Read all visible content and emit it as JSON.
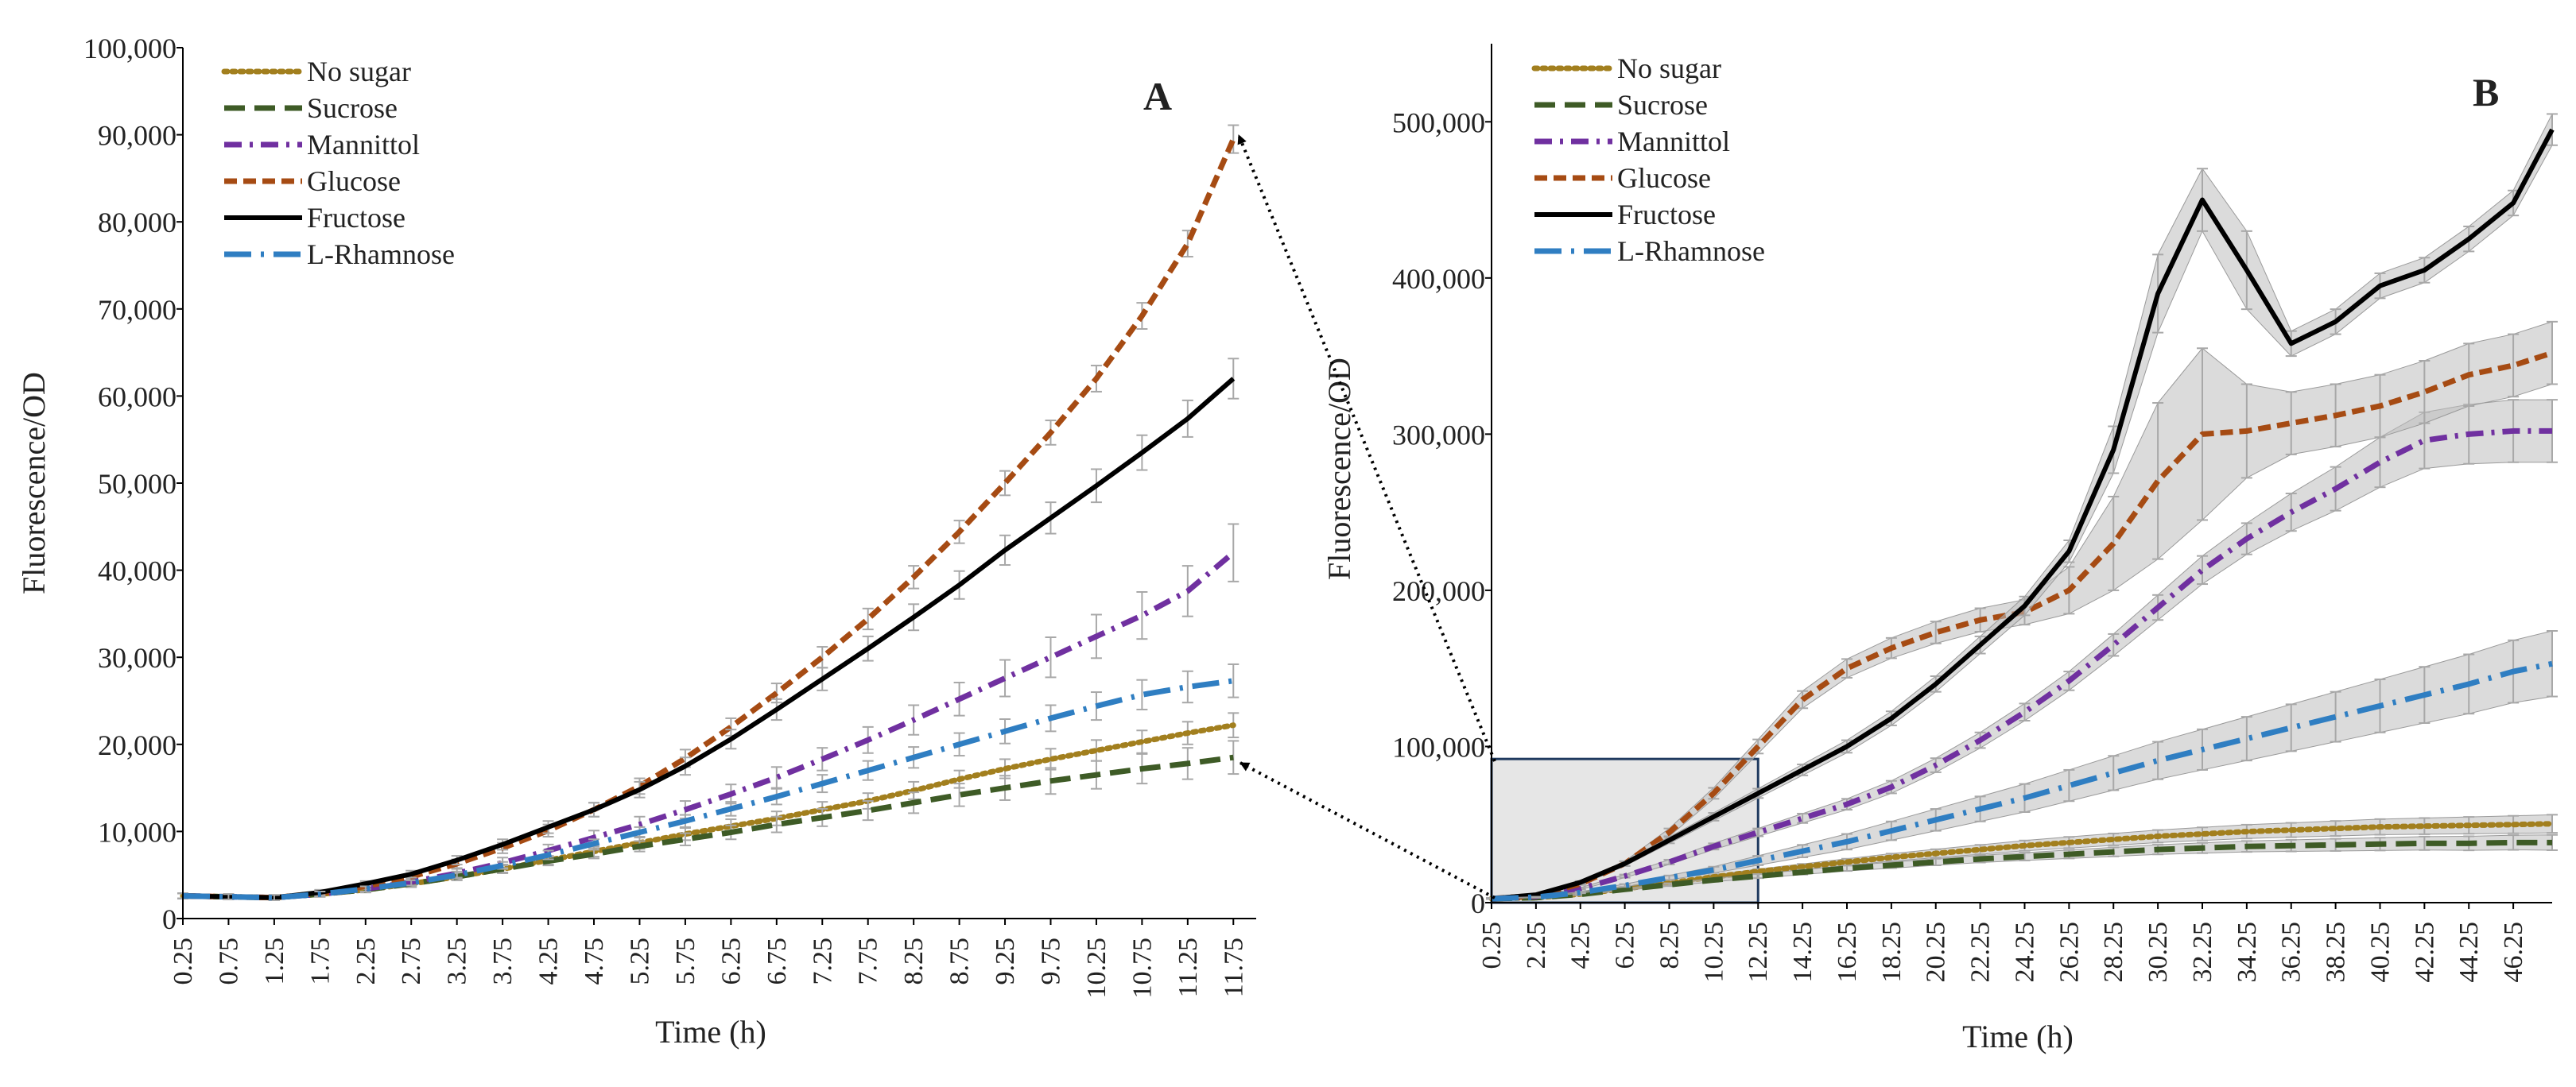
{
  "figure": {
    "background": "#ffffff"
  },
  "chart_data": [
    {
      "type": "line",
      "panel_label": "A",
      "xlabel": "Time (h)",
      "ylabel": "Fluorescence/OD",
      "x": [
        0.25,
        0.75,
        1.25,
        1.75,
        2.25,
        2.75,
        3.25,
        3.75,
        4.25,
        4.75,
        5.25,
        5.75,
        6.25,
        6.75,
        7.25,
        7.75,
        8.25,
        8.75,
        9.25,
        9.75,
        10.25,
        10.75,
        11.25,
        11.75
      ],
      "x_tick_labels": [
        "0.25",
        "0.75",
        "1.25",
        "1.75",
        "2.25",
        "2.75",
        "3.25",
        "3.75",
        "4.25",
        "4.75",
        "5.25",
        "5.75",
        "6.25",
        "6.75",
        "7.25",
        "7.75",
        "8.25",
        "8.75",
        "9.25",
        "9.75",
        "10.25",
        "10.75",
        "11.25",
        "11.75"
      ],
      "xlim": [
        0.25,
        12.0
      ],
      "ylim": [
        0,
        100000
      ],
      "y_ticks": [
        0,
        10000,
        20000,
        30000,
        40000,
        50000,
        60000,
        70000,
        80000,
        90000,
        100000
      ],
      "y_tick_labels": [
        "0",
        "10,000",
        "20,000",
        "30,000",
        "40,000",
        "50,000",
        "60,000",
        "70,000",
        "80,000",
        "90,000",
        "100,000"
      ],
      "grid": false,
      "legend": "top-left",
      "series": [
        {
          "name": "No sugar",
          "color": "#a27f1e",
          "dash": "dotted",
          "values": [
            2600,
            2500,
            2400,
            2800,
            3300,
            4000,
            4800,
            5700,
            6700,
            7700,
            8700,
            9700,
            10600,
            11500,
            12500,
            13500,
            14700,
            16000,
            17200,
            18300,
            19300,
            20300,
            21300,
            22200
          ],
          "errors": [
            300,
            300,
            300,
            300,
            300,
            400,
            400,
            500,
            500,
            600,
            700,
            700,
            800,
            800,
            900,
            900,
            1000,
            1000,
            1100,
            1200,
            1200,
            1300,
            1300,
            1400
          ]
        },
        {
          "name": "Sucrose",
          "color": "#3e5b26",
          "dash": "long-dash",
          "values": [
            2600,
            2500,
            2400,
            2800,
            3300,
            4000,
            4800,
            5700,
            6600,
            7400,
            8300,
            9100,
            9900,
            10800,
            11600,
            12400,
            13300,
            14200,
            15000,
            15800,
            16500,
            17200,
            17800,
            18500
          ],
          "errors": [
            300,
            300,
            300,
            300,
            300,
            300,
            400,
            400,
            500,
            500,
            600,
            700,
            800,
            900,
            1000,
            1100,
            1200,
            1300,
            1400,
            1500,
            1600,
            1700,
            1800,
            1900
          ]
        },
        {
          "name": "Mannittol",
          "color": "#7030a0",
          "dash": "dash-dot",
          "values": [
            2600,
            2500,
            2400,
            2800,
            3400,
            4200,
            5200,
            6400,
            7800,
            9300,
            10800,
            12500,
            14300,
            16200,
            18300,
            20500,
            22800,
            25200,
            27600,
            30000,
            32400,
            34800,
            37600,
            42000
          ],
          "errors": [
            300,
            300,
            300,
            300,
            300,
            400,
            500,
            600,
            700,
            800,
            900,
            1000,
            1100,
            1200,
            1300,
            1500,
            1700,
            1900,
            2100,
            2300,
            2500,
            2700,
            2900,
            3300
          ]
        },
        {
          "name": "Glucose",
          "color": "#a64b13",
          "dash": "dash",
          "values": [
            2600,
            2500,
            2400,
            2900,
            3700,
            4800,
            6300,
            8100,
            10100,
            12500,
            15200,
            18400,
            22000,
            25900,
            30000,
            34400,
            39200,
            44400,
            50000,
            55800,
            62000,
            69200,
            77500,
            89500
          ],
          "errors": [
            300,
            300,
            300,
            300,
            300,
            400,
            500,
            600,
            700,
            800,
            900,
            1000,
            1000,
            1100,
            1200,
            1200,
            1300,
            1300,
            1400,
            1400,
            1500,
            1500,
            1500,
            1600
          ]
        },
        {
          "name": "Fructose",
          "color": "#000000",
          "dash": "solid",
          "values": [
            2600,
            2500,
            2400,
            3000,
            4000,
            5100,
            6700,
            8500,
            10500,
            12500,
            14800,
            17500,
            20600,
            24000,
            27500,
            31000,
            34600,
            38300,
            42300,
            46000,
            49700,
            53500,
            57400,
            62000
          ],
          "errors": [
            300,
            300,
            300,
            300,
            300,
            400,
            500,
            600,
            700,
            800,
            900,
            1000,
            1100,
            1200,
            1300,
            1400,
            1500,
            1600,
            1700,
            1800,
            1900,
            2000,
            2100,
            2300
          ]
        },
        {
          "name": "L-Rhamnose",
          "color": "#2f7ec2",
          "dash": "long-dash-dot",
          "values": [
            2600,
            2500,
            2400,
            2800,
            3400,
            4100,
            5000,
            6100,
            7300,
            8600,
            9900,
            11200,
            12600,
            14000,
            15500,
            17000,
            18500,
            20000,
            21500,
            23000,
            24400,
            25700,
            26600,
            27300
          ],
          "errors": [
            300,
            300,
            300,
            300,
            300,
            300,
            400,
            400,
            500,
            500,
            600,
            700,
            800,
            900,
            1000,
            1100,
            1200,
            1300,
            1400,
            1500,
            1600,
            1700,
            1800,
            1900
          ]
        }
      ]
    },
    {
      "type": "line",
      "panel_label": "B",
      "xlabel": "Time (h)",
      "ylabel": "Fluorescence/OD",
      "x": [
        0.25,
        2.25,
        4.25,
        6.25,
        8.25,
        10.25,
        12.25,
        14.25,
        16.25,
        18.25,
        20.25,
        22.25,
        24.25,
        26.25,
        28.25,
        30.25,
        32.25,
        34.25,
        36.25,
        38.25,
        40.25,
        42.25,
        44.25,
        46.25,
        48.0
      ],
      "x_tick_labels": [
        "0.25",
        "2.25",
        "4.25",
        "6.25",
        "8.25",
        "10.25",
        "12.25",
        "14.25",
        "16.25",
        "18.25",
        "20.25",
        "22.25",
        "24.25",
        "26.25",
        "28.25",
        "30.25",
        "32.25",
        "34.25",
        "36.25",
        "38.25",
        "40.25",
        "42.25",
        "44.25",
        "46.25"
      ],
      "xlim": [
        0.25,
        48.0
      ],
      "ylim": [
        0,
        550000
      ],
      "y_ticks": [
        0,
        100000,
        200000,
        300000,
        400000,
        500000
      ],
      "y_tick_labels": [
        "0",
        "100,000",
        "200,000",
        "300,000",
        "400,000",
        "500,000"
      ],
      "grid": false,
      "legend": "top-left",
      "zoom_box": {
        "x": [
          0.25,
          12.25
        ],
        "y": [
          0,
          92000
        ],
        "fill": "#e6e6e6",
        "stroke": "#1f3a5f"
      },
      "series": [
        {
          "name": "No sugar",
          "color": "#a27f1e",
          "dash": "dotted",
          "values": [
            2600,
            3200,
            5500,
            9000,
            12500,
            16500,
            20000,
            23000,
            26000,
            29000,
            31500,
            34000,
            36500,
            38500,
            40500,
            42500,
            44000,
            45500,
            46500,
            47500,
            48500,
            49000,
            49500,
            50000,
            50500
          ],
          "errors": [
            300,
            300,
            500,
            700,
            1000,
            1200,
            1500,
            1800,
            2100,
            2400,
            2700,
            3000,
            3300,
            3600,
            3800,
            4000,
            4200,
            4400,
            4600,
            4800,
            5000,
            5200,
            5400,
            5600,
            5800
          ]
        },
        {
          "name": "Sucrose",
          "color": "#3e5b26",
          "dash": "long-dash",
          "values": [
            2600,
            3200,
            5300,
            8500,
            11500,
            14500,
            17000,
            19500,
            22000,
            24000,
            26000,
            28000,
            29500,
            31000,
            32500,
            34000,
            35000,
            36000,
            36500,
            37000,
            37500,
            38000,
            38000,
            38500,
            38500
          ],
          "errors": [
            300,
            300,
            500,
            700,
            900,
            1100,
            1300,
            1500,
            1700,
            1900,
            2100,
            2300,
            2500,
            2700,
            2900,
            3100,
            3300,
            3500,
            3700,
            3900,
            4100,
            4300,
            4500,
            4700,
            4900
          ]
        },
        {
          "name": "Mannittol",
          "color": "#7030a0",
          "dash": "dash-dot",
          "values": [
            2600,
            4000,
            9000,
            17000,
            26000,
            36000,
            45000,
            54000,
            63000,
            74000,
            88000,
            104000,
            122000,
            142000,
            165000,
            189000,
            213000,
            233000,
            250000,
            265000,
            282000,
            296000,
            300000,
            302000,
            302000
          ],
          "errors": [
            300,
            300,
            600,
            1000,
            1500,
            2000,
            2500,
            3000,
            3500,
            4000,
            4500,
            5000,
            5500,
            6000,
            7000,
            8000,
            9000,
            10000,
            12000,
            14000,
            16000,
            18000,
            19000,
            20000,
            20000
          ]
        },
        {
          "name": "Glucose",
          "color": "#a64b13",
          "dash": "dash",
          "values": [
            2600,
            4500,
            12000,
            25000,
            45000,
            70000,
            100000,
            130000,
            150000,
            163000,
            173000,
            181000,
            186000,
            200000,
            230000,
            270000,
            300000,
            302000,
            307000,
            312000,
            318000,
            327000,
            338000,
            344000,
            352000
          ],
          "errors": [
            300,
            400,
            700,
            1500,
            2500,
            3500,
            4500,
            5500,
            6000,
            6500,
            7000,
            7500,
            8000,
            15000,
            30000,
            50000,
            55000,
            30000,
            20000,
            20000,
            20000,
            20000,
            20000,
            20000,
            20000
          ]
        },
        {
          "name": "Fructose",
          "color": "#000000",
          "dash": "solid",
          "values": [
            2600,
            5000,
            13000,
            25000,
            40000,
            55000,
            70000,
            85000,
            100000,
            118000,
            140000,
            165000,
            190000,
            225000,
            290000,
            390000,
            450000,
            405000,
            358000,
            372000,
            395000,
            405000,
            425000,
            448000,
            495000
          ],
          "errors": [
            300,
            400,
            800,
            1500,
            2000,
            2500,
            3000,
            3500,
            4000,
            4500,
            5000,
            5500,
            6000,
            7000,
            15000,
            25000,
            20000,
            25000,
            8000,
            8000,
            8000,
            8000,
            8000,
            8000,
            10000
          ]
        },
        {
          "name": "L-Rhamnose",
          "color": "#2f7ec2",
          "dash": "long-dash-dot",
          "values": [
            2600,
            3500,
            6500,
            11000,
            16000,
            21000,
            27000,
            33000,
            39000,
            46000,
            53000,
            60000,
            67000,
            75000,
            83000,
            91000,
            98000,
            105000,
            112000,
            119000,
            126000,
            133000,
            140000,
            148000,
            153000
          ],
          "errors": [
            300,
            300,
            500,
            900,
            1400,
            2000,
            3000,
            4000,
            5000,
            6000,
            7000,
            8000,
            9000,
            10000,
            11000,
            12000,
            13000,
            14000,
            15000,
            16000,
            17000,
            18000,
            19000,
            20000,
            21000
          ]
        }
      ]
    }
  ]
}
